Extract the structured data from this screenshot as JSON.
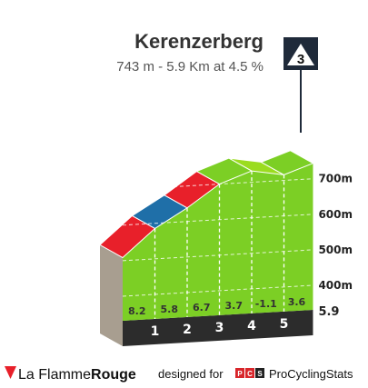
{
  "header": {
    "title": "Kerenzerberg",
    "subtitle": "743 m - 5.9 Km at 4.5 %"
  },
  "category_badge": {
    "label": "3"
  },
  "footer": {
    "brand_prefix": "La Flamme",
    "brand_suffix": "Rouge",
    "credit_text": "designed for",
    "pcs_letters": [
      "P",
      "C",
      "S"
    ],
    "pcs_name": "ProCyclingStats"
  },
  "colors": {
    "green": "#7ccf25",
    "light_green": "#9bdc1f",
    "red": "#e8202a",
    "blue": "#1f6fa8",
    "side_grey": "#a89e90",
    "base_dark": "#2c2c2c",
    "pcs_red": "#d8262b"
  },
  "chart_data": {
    "type": "area",
    "title": "Kerenzerberg",
    "subtitle": "743 m - 5.9 Km at 4.5 %",
    "xlabel": "",
    "ylabel": "",
    "distance_total_km": 5.9,
    "distance_label": "5.9",
    "km_markers": [
      "1",
      "2",
      "3",
      "4",
      "5"
    ],
    "y_ticks": [
      {
        "value": 400,
        "label": "400m"
      },
      {
        "value": 500,
        "label": "500m"
      },
      {
        "value": 600,
        "label": "600m"
      },
      {
        "value": 700,
        "label": "700m"
      }
    ],
    "segments": [
      {
        "km_start": 0,
        "km_end": 1,
        "gradient": 8.2,
        "label": "8.2",
        "color": "red"
      },
      {
        "km_start": 1,
        "km_end": 2,
        "gradient": 5.8,
        "label": "5.8",
        "color": "blue"
      },
      {
        "km_start": 2,
        "km_end": 3,
        "gradient": 6.7,
        "label": "6.7",
        "color": "red"
      },
      {
        "km_start": 3,
        "km_end": 4,
        "gradient": 3.7,
        "label": "3.7",
        "color": "green"
      },
      {
        "km_start": 4,
        "km_end": 5,
        "gradient": -1.1,
        "label": "-1.1",
        "color": "light_green"
      },
      {
        "km_start": 5,
        "km_end": 5.9,
        "gradient": 3.6,
        "label": "3.6",
        "color": "green"
      }
    ]
  }
}
